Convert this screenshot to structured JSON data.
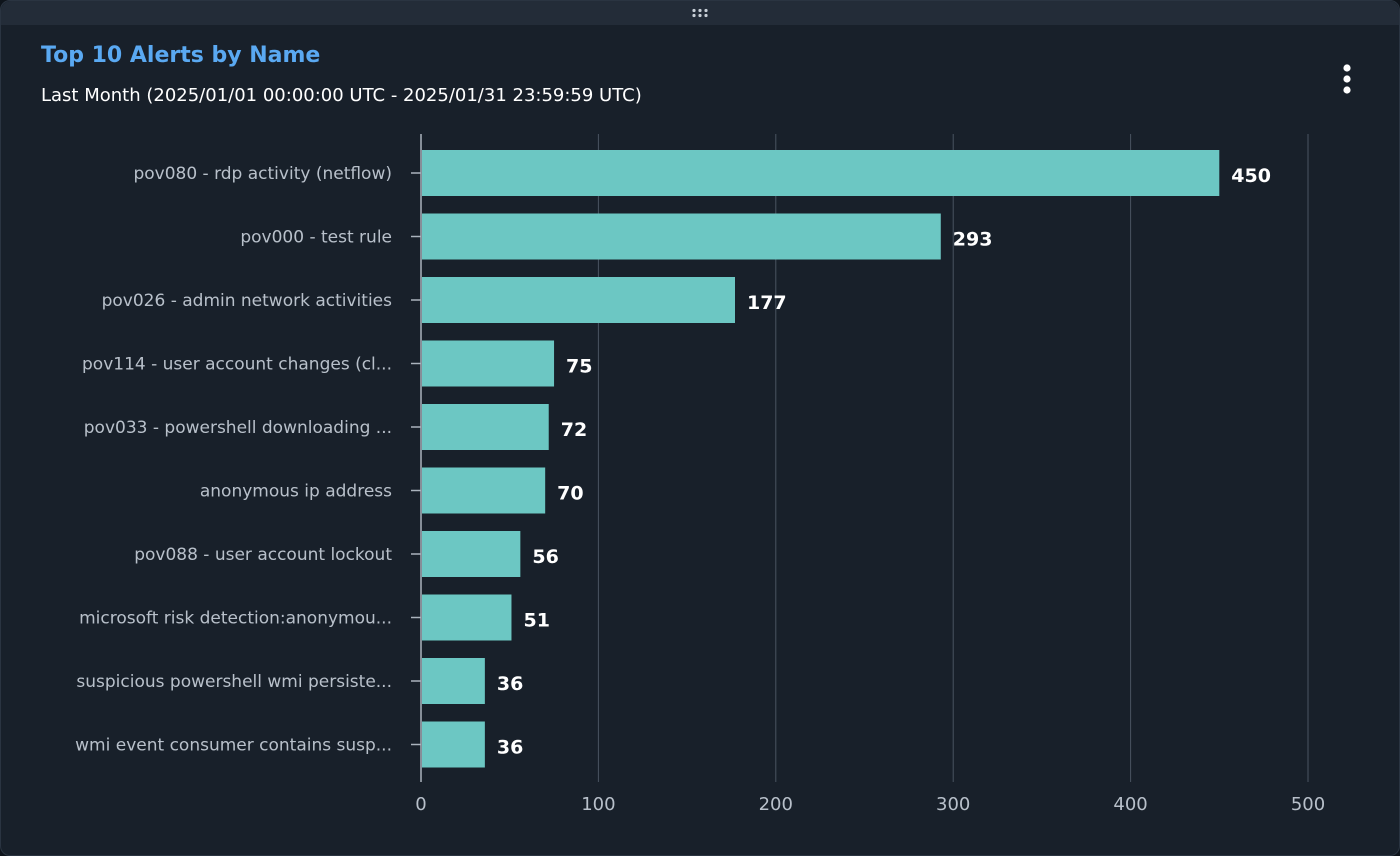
{
  "panel": {
    "title": "Top 10 Alerts by Name",
    "subtitle": "Last Month (2025/01/01 00:00:00 UTC - 2025/01/31 23:59:59 UTC)",
    "menu_icon": "more-vertical-icon",
    "drag_icon": "drag-handle-icon"
  },
  "colors": {
    "bar": "#6cc7c3",
    "title": "#5aa9f2",
    "background": "#18202a",
    "grid": "#4a5461"
  },
  "chart_data": {
    "type": "bar",
    "orientation": "horizontal",
    "categories": [
      "pov080 - rdp activity (netflow)",
      "pov000 - test rule",
      "pov026 - admin network activities",
      "pov114 - user account changes (cl...",
      "pov033 - powershell downloading ...",
      "anonymous ip address",
      "pov088 - user account lockout",
      "microsoft risk detection:anonymou...",
      "suspicious powershell wmi persiste...",
      "wmi event consumer contains susp..."
    ],
    "values": [
      450,
      293,
      177,
      75,
      72,
      70,
      56,
      51,
      36,
      36
    ],
    "xlim": [
      0,
      500
    ],
    "xticks": [
      0,
      100,
      200,
      300,
      400,
      500
    ],
    "grid": true,
    "data_labels": true,
    "legend": "none"
  }
}
